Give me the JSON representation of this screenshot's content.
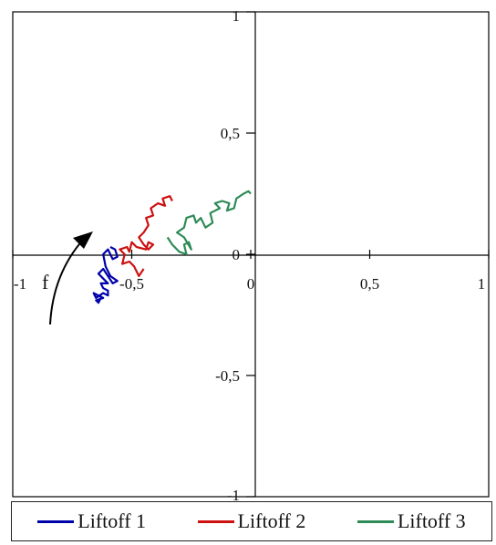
{
  "chart_data": {
    "type": "line",
    "title": "",
    "xlabel": "",
    "ylabel": "",
    "xlim": [
      -1,
      1
    ],
    "ylim": [
      -1,
      1
    ],
    "x_ticks": [
      "-1",
      "-0,5",
      "0",
      "0,5",
      "1"
    ],
    "y_ticks": [
      "1",
      "0,5",
      "0",
      "-0,5",
      "-1"
    ],
    "annotation": "f",
    "legend_position": "bottom",
    "series": [
      {
        "name": "Liftoff 1",
        "color": "#0000aa",
        "points": [
          [
            -0.63,
            -0.18
          ],
          [
            -0.64,
            -0.2
          ],
          [
            -0.65,
            -0.19
          ],
          [
            -0.62,
            -0.18
          ],
          [
            -0.66,
            -0.16
          ],
          [
            -0.65,
            -0.18
          ],
          [
            -0.62,
            -0.16
          ],
          [
            -0.6,
            -0.17
          ],
          [
            -0.6,
            -0.15
          ],
          [
            -0.62,
            -0.14
          ],
          [
            -0.63,
            -0.12
          ],
          [
            -0.6,
            -0.12
          ],
          [
            -0.61,
            -0.11
          ],
          [
            -0.64,
            -0.08
          ],
          [
            -0.62,
            -0.06
          ],
          [
            -0.6,
            -0.09
          ],
          [
            -0.58,
            -0.12
          ],
          [
            -0.56,
            -0.11
          ],
          [
            -0.59,
            -0.09
          ],
          [
            -0.61,
            -0.05
          ],
          [
            -0.62,
            0.0
          ],
          [
            -0.6,
            0.02
          ],
          [
            -0.59,
            0.0
          ],
          [
            -0.58,
            -0.02
          ],
          [
            -0.56,
            -0.01
          ],
          [
            -0.57,
            0.02
          ],
          [
            -0.59,
            0.03
          ]
        ]
      },
      {
        "name": "Liftoff 2",
        "color": "#cc1111",
        "points": [
          [
            -0.45,
            -0.06
          ],
          [
            -0.47,
            -0.09
          ],
          [
            -0.49,
            -0.05
          ],
          [
            -0.51,
            -0.03
          ],
          [
            -0.54,
            -0.04
          ],
          [
            -0.53,
            0.0
          ],
          [
            -0.55,
            0.02
          ],
          [
            -0.52,
            0.03
          ],
          [
            -0.51,
            0.01
          ],
          [
            -0.5,
            0.05
          ],
          [
            -0.48,
            0.03
          ],
          [
            -0.44,
            0.02
          ],
          [
            -0.43,
            0.05
          ],
          [
            -0.41,
            0.04
          ],
          [
            -0.43,
            0.02
          ],
          [
            -0.45,
            0.04
          ],
          [
            -0.47,
            0.07
          ],
          [
            -0.45,
            0.09
          ],
          [
            -0.43,
            0.12
          ],
          [
            -0.44,
            0.15
          ],
          [
            -0.41,
            0.16
          ],
          [
            -0.42,
            0.19
          ],
          [
            -0.39,
            0.21
          ],
          [
            -0.36,
            0.2
          ],
          [
            -0.37,
            0.23
          ],
          [
            -0.34,
            0.24
          ],
          [
            -0.33,
            0.22
          ]
        ]
      },
      {
        "name": "Liftoff 3",
        "color": "#2e8b57",
        "points": [
          [
            -0.35,
            0.07
          ],
          [
            -0.33,
            0.04
          ],
          [
            -0.3,
            0.01
          ],
          [
            -0.27,
            0.0
          ],
          [
            -0.28,
            0.04
          ],
          [
            -0.26,
            0.05
          ],
          [
            -0.25,
            0.02
          ],
          [
            -0.28,
            0.07
          ],
          [
            -0.31,
            0.09
          ],
          [
            -0.28,
            0.11
          ],
          [
            -0.27,
            0.15
          ],
          [
            -0.24,
            0.16
          ],
          [
            -0.23,
            0.13
          ],
          [
            -0.21,
            0.15
          ],
          [
            -0.19,
            0.11
          ],
          [
            -0.16,
            0.13
          ],
          [
            -0.17,
            0.17
          ],
          [
            -0.13,
            0.19
          ],
          [
            -0.15,
            0.21
          ],
          [
            -0.12,
            0.22
          ],
          [
            -0.09,
            0.21
          ],
          [
            -0.1,
            0.18
          ],
          [
            -0.07,
            0.19
          ],
          [
            -0.06,
            0.23
          ],
          [
            -0.03,
            0.25
          ],
          [
            -0.01,
            0.26
          ],
          [
            0.0,
            0.25
          ]
        ]
      }
    ]
  }
}
